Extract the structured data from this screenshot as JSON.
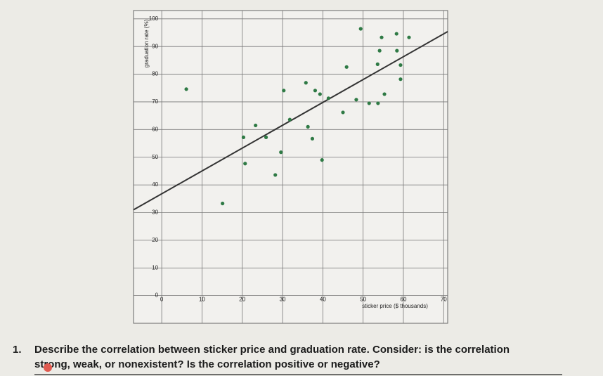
{
  "chart_data": {
    "type": "scatter",
    "x_label": "sticker price ($ thousands)",
    "y_label": "graduation rate (%)",
    "xlim": [
      -7,
      71
    ],
    "ylim": [
      -10,
      103
    ],
    "xticks": [
      0,
      10,
      20,
      30,
      40,
      50,
      60,
      70
    ],
    "yticks": [
      0,
      10,
      20,
      30,
      40,
      50,
      60,
      70,
      80,
      90,
      100
    ],
    "grid": true,
    "color": "#2f7a45",
    "x": [
      6.1,
      15.1,
      20.3,
      20.7,
      23.3,
      25.9,
      28.2,
      29.6,
      30.3,
      31.8,
      36.3,
      35.8,
      37.4,
      38.1,
      39.3,
      39.8,
      41.4,
      45.0,
      45.9,
      48.3,
      49.4,
      51.5,
      53.7,
      53.6,
      54.1,
      54.6,
      55.3,
      58.3,
      58.4,
      59.3,
      59.3,
      61.4
    ],
    "values": [
      74.6,
      33.3,
      57.2,
      47.7,
      61.5,
      57.2,
      43.6,
      51.8,
      74.1,
      63.6,
      61.0,
      76.9,
      56.7,
      74.1,
      72.8,
      49.0,
      71.3,
      66.2,
      82.6,
      70.8,
      96.4,
      69.5,
      69.5,
      83.6,
      88.5,
      93.3,
      72.8,
      94.6,
      88.5,
      83.3,
      78.2,
      93.3
    ],
    "trend_line": {
      "x": [
        -7,
        71
      ],
      "y": [
        31.0,
        95.4
      ]
    }
  },
  "question": {
    "number": "1.",
    "lines": [
      "Describe the correlation between sticker price and graduation rate. Consider: is the correlation",
      "strong, weak, or nonexistent? Is the correlation positive or negative?"
    ]
  }
}
